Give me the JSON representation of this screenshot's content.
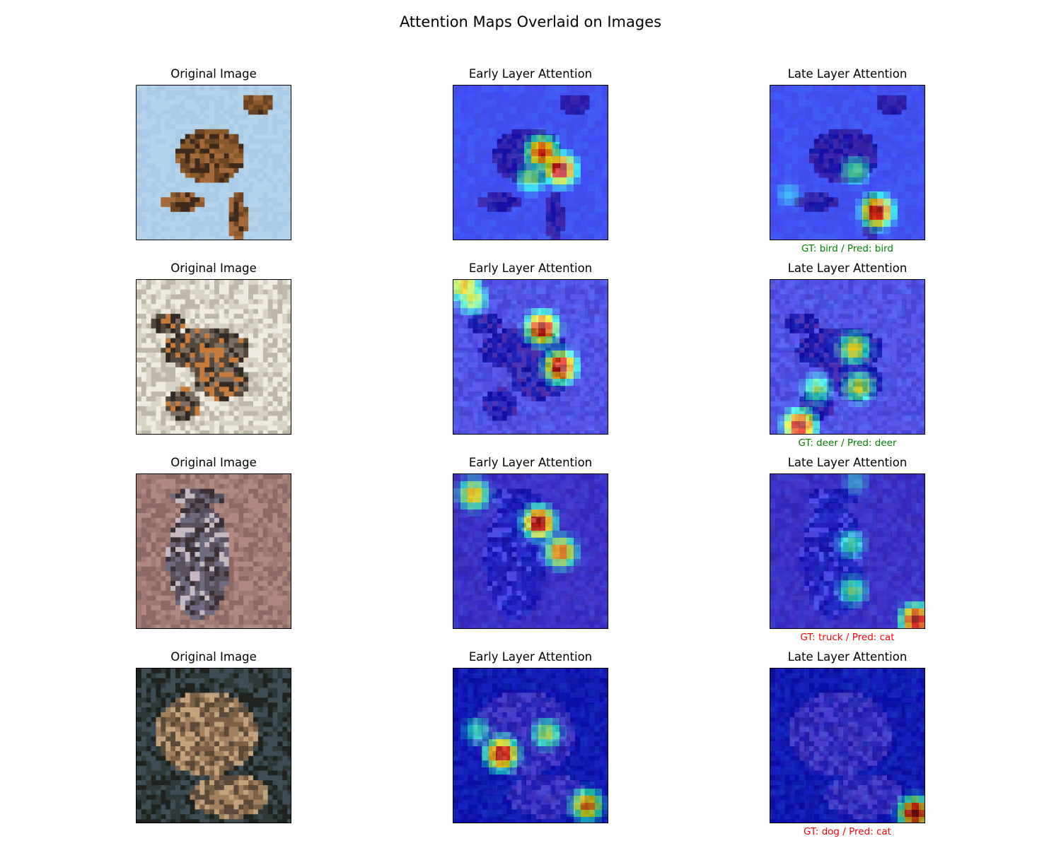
{
  "chart_data": {
    "type": "image-grid",
    "title": "Attention Maps Overlaid on Images",
    "column_titles": [
      "Original Image",
      "Early Layer Attention",
      "Late Layer Attention"
    ],
    "rows": [
      {
        "subject": "bird",
        "caption": "GT: bird / Pred: bird",
        "caption_color": "#008000",
        "early_hotspots": [
          [
            0.57,
            0.43,
            0.9
          ],
          [
            0.69,
            0.54,
            1.0
          ],
          [
            0.5,
            0.6,
            0.5
          ]
        ],
        "late_hotspots": [
          [
            0.69,
            0.81,
            1.0
          ],
          [
            0.55,
            0.55,
            0.45
          ],
          [
            0.12,
            0.7,
            0.3
          ]
        ]
      },
      {
        "subject": "deer",
        "caption": "GT: deer / Pred: deer",
        "caption_color": "#008000",
        "early_hotspots": [
          [
            0.57,
            0.31,
            1.0
          ],
          [
            0.69,
            0.56,
            1.0
          ],
          [
            0.12,
            0.12,
            0.6
          ],
          [
            0.07,
            0.04,
            0.7
          ]
        ],
        "late_hotspots": [
          [
            0.19,
            0.94,
            1.0
          ],
          [
            0.54,
            0.44,
            0.65
          ],
          [
            0.57,
            0.69,
            0.6
          ],
          [
            0.3,
            0.7,
            0.5
          ]
        ]
      },
      {
        "subject": "truck",
        "caption": "GT: truck / Pred: cat",
        "caption_color": "#ff0000",
        "early_hotspots": [
          [
            0.55,
            0.31,
            1.0
          ],
          [
            0.69,
            0.5,
            0.8
          ],
          [
            0.13,
            0.13,
            0.7
          ]
        ],
        "late_hotspots": [
          [
            0.94,
            0.94,
            1.0
          ],
          [
            0.53,
            0.75,
            0.5
          ],
          [
            0.52,
            0.45,
            0.45
          ],
          [
            0.55,
            0.05,
            0.3
          ]
        ]
      },
      {
        "subject": "dog",
        "caption": "GT: dog / Pred: cat",
        "caption_color": "#ff0000",
        "early_hotspots": [
          [
            0.31,
            0.55,
            1.0
          ],
          [
            0.86,
            0.88,
            0.8
          ],
          [
            0.6,
            0.42,
            0.55
          ],
          [
            0.15,
            0.4,
            0.4
          ]
        ],
        "late_hotspots": [
          [
            0.93,
            0.93,
            1.0
          ]
        ]
      }
    ]
  }
}
